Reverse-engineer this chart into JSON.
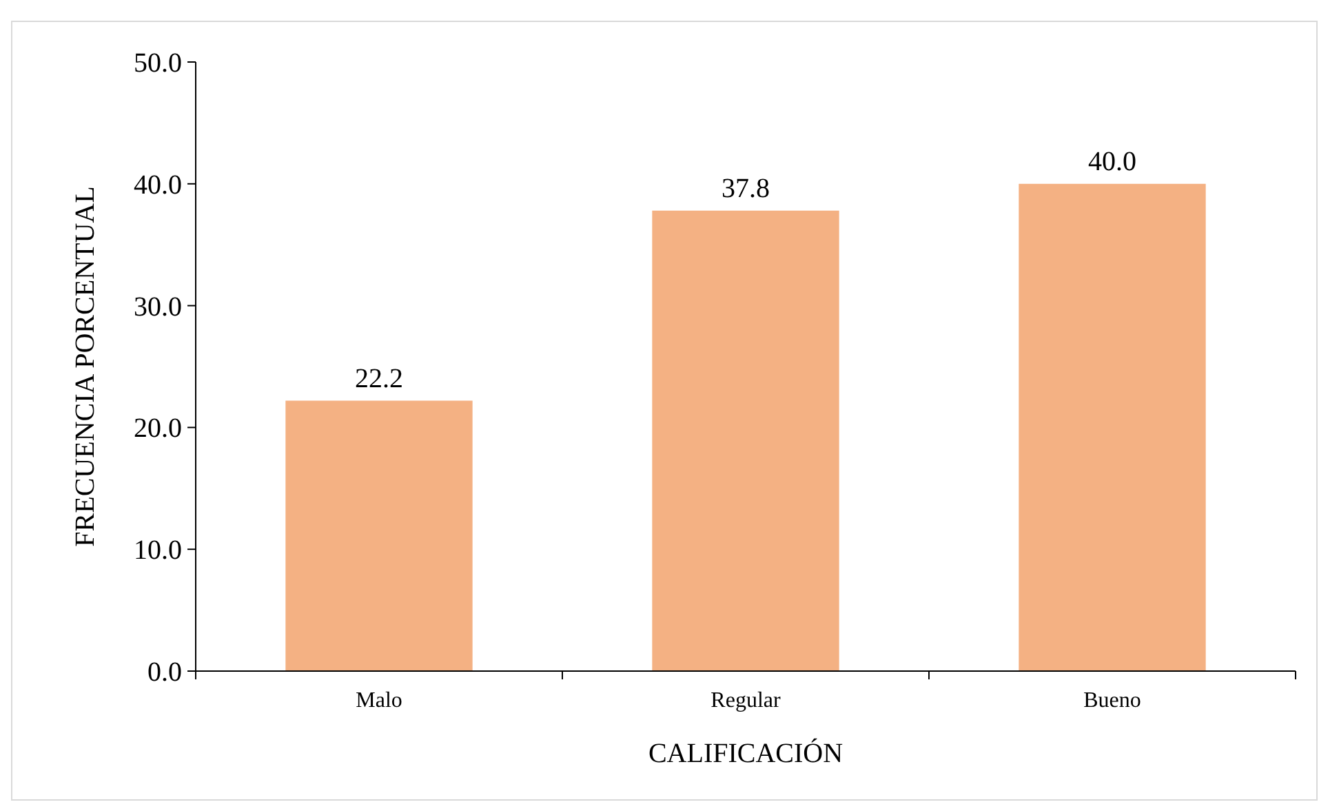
{
  "chart_data": {
    "type": "bar",
    "xlabel": "CALIFICACIÓN",
    "ylabel": "FRECUENCIA PORCENTUAL",
    "categories": [
      "Malo",
      "Regular",
      "Bueno"
    ],
    "values": [
      22.2,
      37.8,
      40.0
    ],
    "value_labels": [
      "22.2",
      "37.8",
      "40.0"
    ],
    "color": "#f4b183",
    "ylim": [
      0,
      50
    ],
    "yticks": [
      {
        "value": 0,
        "label": "0.0"
      },
      {
        "value": 10,
        "label": "10.0"
      },
      {
        "value": 20,
        "label": "20.0"
      },
      {
        "value": 30,
        "label": "30.0"
      },
      {
        "value": 40,
        "label": "40.0"
      },
      {
        "value": 50,
        "label": "50.0"
      }
    ],
    "grid": false
  }
}
